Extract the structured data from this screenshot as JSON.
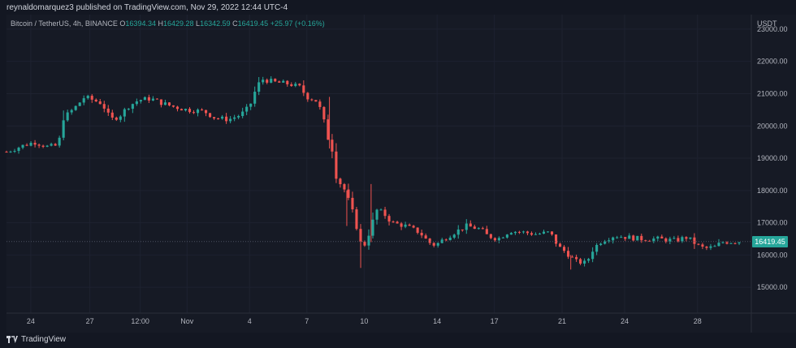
{
  "header": {
    "publisher_line": "reynaldomarquez3 published on TradingView.com, Nov 29, 2022 12:44 UTC-4"
  },
  "legend": {
    "symbol": "Bitcoin / TetherUS, 4h, BINANCE",
    "open_label": "O",
    "open": "16394.34",
    "high_label": "H",
    "high": "16429.28",
    "low_label": "L",
    "low": "16342.59",
    "close_label": "C",
    "close": "16419.45",
    "change": "+25.97 (+0.16%)"
  },
  "footer": {
    "brand": "TradingView",
    "logo_icon": "tradingview-logo-icon"
  },
  "colors": {
    "up": "#26a69a",
    "down": "#ef5350",
    "background": "#161a25",
    "grid": "#1e2230"
  },
  "chart_data": {
    "type": "candlestick",
    "currency": "USDT",
    "last_price": "16419.45",
    "y_ticks": [
      "23000.00",
      "22000.00",
      "21000.00",
      "20000.00",
      "19000.00",
      "18000.00",
      "17000.00",
      "16000.00",
      "15000.00"
    ],
    "ylim": [
      14200,
      23450
    ],
    "x_tick_labels": [
      "24",
      "27",
      "12:00",
      "Nov",
      "4",
      "7",
      "10",
      "14",
      "17",
      "21",
      "24",
      "28"
    ],
    "x_tick_positions": [
      1.4,
      4.8,
      7.7,
      10.4,
      14.0,
      17.3,
      20.6,
      24.8,
      28.1,
      32.0,
      35.6,
      39.8
    ],
    "xlim": [
      0,
      42.9
    ],
    "anchors": [
      [
        0,
        19200
      ],
      [
        1,
        19400
      ],
      [
        1.6,
        19500
      ],
      [
        2.4,
        19350
      ],
      [
        3.0,
        19400
      ],
      [
        3.2,
        20200
      ],
      [
        4.0,
        20600
      ],
      [
        4.5,
        20900
      ],
      [
        5.5,
        20700
      ],
      [
        6.0,
        20200
      ],
      [
        6.5,
        20300
      ],
      [
        7.0,
        20600
      ],
      [
        7.6,
        20800
      ],
      [
        8.3,
        20850
      ],
      [
        9.0,
        20700
      ],
      [
        9.6,
        20600
      ],
      [
        10.4,
        20500
      ],
      [
        11.4,
        20450
      ],
      [
        12.0,
        20250
      ],
      [
        12.8,
        20200
      ],
      [
        13.5,
        20350
      ],
      [
        14.0,
        20600
      ],
      [
        14.4,
        21200
      ],
      [
        14.7,
        21450
      ],
      [
        15.5,
        21350
      ],
      [
        16.3,
        21300
      ],
      [
        16.9,
        21200
      ],
      [
        17.3,
        20900
      ],
      [
        17.8,
        20800
      ],
      [
        18.2,
        20400
      ],
      [
        18.4,
        19800
      ],
      [
        18.8,
        19200
      ],
      [
        19.0,
        18400
      ],
      [
        19.5,
        18000
      ],
      [
        19.9,
        17400
      ],
      [
        20.2,
        16800
      ],
      [
        20.5,
        16150
      ],
      [
        20.9,
        16700
      ],
      [
        21.3,
        17400
      ],
      [
        21.7,
        17300
      ],
      [
        22.2,
        17000
      ],
      [
        23.0,
        16900
      ],
      [
        23.8,
        16700
      ],
      [
        24.3,
        16400
      ],
      [
        24.7,
        16300
      ],
      [
        25.2,
        16500
      ],
      [
        25.8,
        16700
      ],
      [
        26.5,
        16900
      ],
      [
        27.3,
        16800
      ],
      [
        27.7,
        16600
      ],
      [
        28.3,
        16500
      ],
      [
        29.0,
        16750
      ],
      [
        29.8,
        16700
      ],
      [
        30.5,
        16650
      ],
      [
        31.3,
        16700
      ],
      [
        31.8,
        16250
      ],
      [
        32.2,
        16100
      ],
      [
        32.8,
        15800
      ],
      [
        33.4,
        15750
      ],
      [
        33.8,
        16200
      ],
      [
        34.3,
        16450
      ],
      [
        35.0,
        16600
      ],
      [
        35.8,
        16550
      ],
      [
        36.5,
        16500
      ],
      [
        37.5,
        16500
      ],
      [
        38.5,
        16450
      ],
      [
        39.2,
        16550
      ],
      [
        39.8,
        16300
      ],
      [
        40.2,
        16200
      ],
      [
        40.8,
        16250
      ],
      [
        41.2,
        16400
      ],
      [
        42.2,
        16420
      ]
    ],
    "grid": true
  }
}
